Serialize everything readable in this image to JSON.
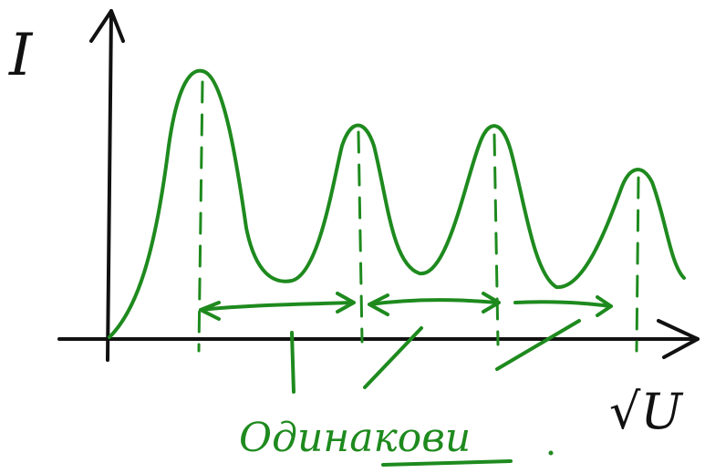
{
  "axes": {
    "y_label": "I",
    "x_label": "√U"
  },
  "annotation": "Одинакови"
}
